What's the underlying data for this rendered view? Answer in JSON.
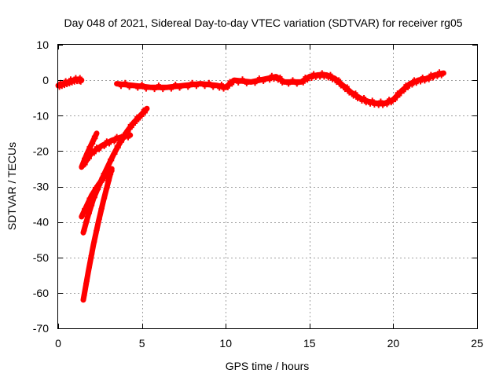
{
  "chart_data": {
    "type": "scatter",
    "title": "Day 048 of 2021, Sidereal Day-to-day VTEC variation (SDTVAR) for receiver rg05",
    "xlabel": "GPS time / hours",
    "ylabel": "SDTVAR / TECUs",
    "xlim": [
      0,
      25
    ],
    "ylim": [
      -70,
      10
    ],
    "xticks": [
      0,
      5,
      10,
      15,
      20,
      25
    ],
    "yticks": [
      10,
      0,
      -10,
      -20,
      -30,
      -40,
      -50,
      -60,
      -70
    ],
    "grid": true,
    "series": [
      {
        "name": "early-segment",
        "color": "#ff0000",
        "x": [
          0.0,
          0.3,
          0.6,
          0.9,
          1.2,
          1.4
        ],
        "y": [
          -1.5,
          -1.0,
          -0.5,
          0.0,
          0.3,
          0.0
        ]
      },
      {
        "name": "main-trace",
        "color": "#ff0000",
        "x": [
          3.5,
          4.5,
          5.5,
          6.5,
          7.5,
          8.5,
          9.5,
          10.0,
          10.5,
          11.5,
          12.5,
          13.0,
          13.5,
          14.5,
          15.0,
          15.5,
          16.0,
          16.5,
          17.0,
          17.5,
          18.0,
          18.5,
          19.0,
          19.5,
          20.0,
          20.5,
          21.0,
          21.5,
          22.0,
          22.5,
          23.0
        ],
        "y": [
          -1.0,
          -1.5,
          -2.0,
          -2.0,
          -1.5,
          -1.0,
          -1.5,
          -2.0,
          0.0,
          -0.5,
          0.5,
          1.0,
          -0.5,
          -0.5,
          1.0,
          1.5,
          1.5,
          0.5,
          -1.5,
          -3.5,
          -5.0,
          -6.0,
          -6.5,
          -6.5,
          -5.5,
          -3.0,
          -1.0,
          0.0,
          0.5,
          1.5,
          2.0
        ]
      },
      {
        "name": "descent-branch-a",
        "color": "#ff0000",
        "x": [
          1.5,
          1.8,
          2.1,
          2.5,
          2.9,
          3.3,
          3.7,
          4.1,
          4.5,
          4.9,
          5.3
        ],
        "y": [
          -43.0,
          -38.0,
          -33.5,
          -29.0,
          -25.0,
          -21.0,
          -17.5,
          -14.5,
          -12.0,
          -10.0,
          -8.0
        ]
      },
      {
        "name": "descent-branch-b",
        "color": "#ff0000",
        "x": [
          1.5,
          2.0,
          2.6,
          3.2,
          3.8,
          4.3
        ],
        "y": [
          -24.0,
          -20.5,
          -18.5,
          -17.0,
          -16.0,
          -15.5
        ]
      },
      {
        "name": "descent-branch-c",
        "color": "#ff0000",
        "x": [
          1.4,
          1.7,
          2.0,
          2.3
        ],
        "y": [
          -24.5,
          -21.0,
          -18.0,
          -15.0
        ]
      },
      {
        "name": "descent-branch-d",
        "color": "#ff0000",
        "x": [
          1.5,
          1.8,
          2.1,
          2.4,
          2.7,
          3.0,
          3.2
        ],
        "y": [
          -62.0,
          -54.0,
          -46.5,
          -40.0,
          -34.0,
          -28.5,
          -25.0
        ]
      },
      {
        "name": "descent-branch-e",
        "color": "#ff0000",
        "x": [
          1.4,
          1.7,
          2.0,
          2.4,
          2.8,
          3.2
        ],
        "y": [
          -38.5,
          -35.5,
          -32.5,
          -29.5,
          -27.0,
          -25.5
        ]
      }
    ]
  }
}
